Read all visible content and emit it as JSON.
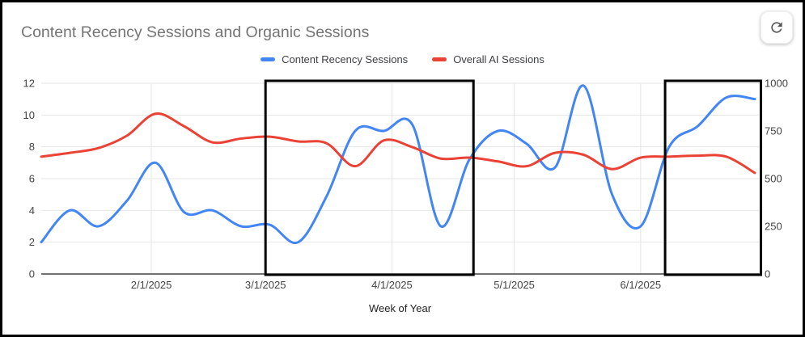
{
  "chart": {
    "title": "Content Recency Sessions and Organic Sessions",
    "x_axis_title": "Week of Year"
  },
  "icons": {
    "refresh": "clockwise-refresh-arrow"
  },
  "chart_data": {
    "type": "line",
    "smooth": true,
    "title": "Content Recency Sessions and Organic Sessions",
    "xlabel": "Week of Year",
    "legend_position": "top-center",
    "grid": true,
    "x_dates": [
      "1/5/2025",
      "1/12/2025",
      "1/19/2025",
      "1/26/2025",
      "2/2/2025",
      "2/9/2025",
      "2/16/2025",
      "2/23/2025",
      "3/2/2025",
      "3/9/2025",
      "3/16/2025",
      "3/23/2025",
      "3/30/2025",
      "4/6/2025",
      "4/13/2025",
      "4/20/2025",
      "4/27/2025",
      "5/4/2025",
      "5/11/2025",
      "5/18/2025",
      "5/25/2025",
      "6/1/2025",
      "6/8/2025",
      "6/15/2025",
      "6/22/2025",
      "6/29/2025"
    ],
    "x_days": [
      0,
      7,
      14,
      21,
      28,
      35,
      42,
      49,
      56,
      63,
      70,
      77,
      84,
      91,
      98,
      105,
      112,
      119,
      126,
      133,
      140,
      147,
      154,
      161,
      168,
      175
    ],
    "x_total_days": 176,
    "x_month_ticks": [
      {
        "label": "2/1/2025",
        "day": 27
      },
      {
        "label": "3/1/2025",
        "day": 55
      },
      {
        "label": "4/1/2025",
        "day": 86
      },
      {
        "label": "5/1/2025",
        "day": 116
      },
      {
        "label": "6/1/2025",
        "day": 147
      }
    ],
    "y_left": {
      "min": 0,
      "max": 12,
      "ticks": [
        0,
        2,
        4,
        6,
        8,
        10,
        12
      ]
    },
    "y_right": {
      "min": 0,
      "max": 1000,
      "ticks": [
        0,
        250,
        500,
        750,
        1000
      ]
    },
    "series": [
      {
        "name": "Content Recency Sessions",
        "color": "#4285F4",
        "axis": "left",
        "values": [
          2,
          4,
          3,
          4.6,
          7,
          3.9,
          4,
          3,
          3.1,
          2,
          4.9,
          9,
          9,
          9.4,
          3,
          7.2,
          9,
          8.2,
          6.7,
          11.85,
          5,
          3,
          8,
          9.3,
          11.1,
          11
        ]
      },
      {
        "name": "Overall AI Sessions",
        "color": "#EA4335",
        "axis": "right",
        "values": [
          615,
          635,
          660,
          725,
          840,
          775,
          690,
          710,
          720,
          695,
          685,
          565,
          700,
          665,
          605,
          610,
          590,
          565,
          635,
          625,
          550,
          610,
          615,
          620,
          615,
          530
        ]
      }
    ],
    "highlight_boxes": [
      {
        "day_start": 55,
        "day_end": 106
      },
      {
        "day_start": 153,
        "day_end": 176.5
      }
    ],
    "highlight_color": "#000000",
    "gridline_color": "#e6e6e6",
    "axis_line_color": "#424242"
  }
}
